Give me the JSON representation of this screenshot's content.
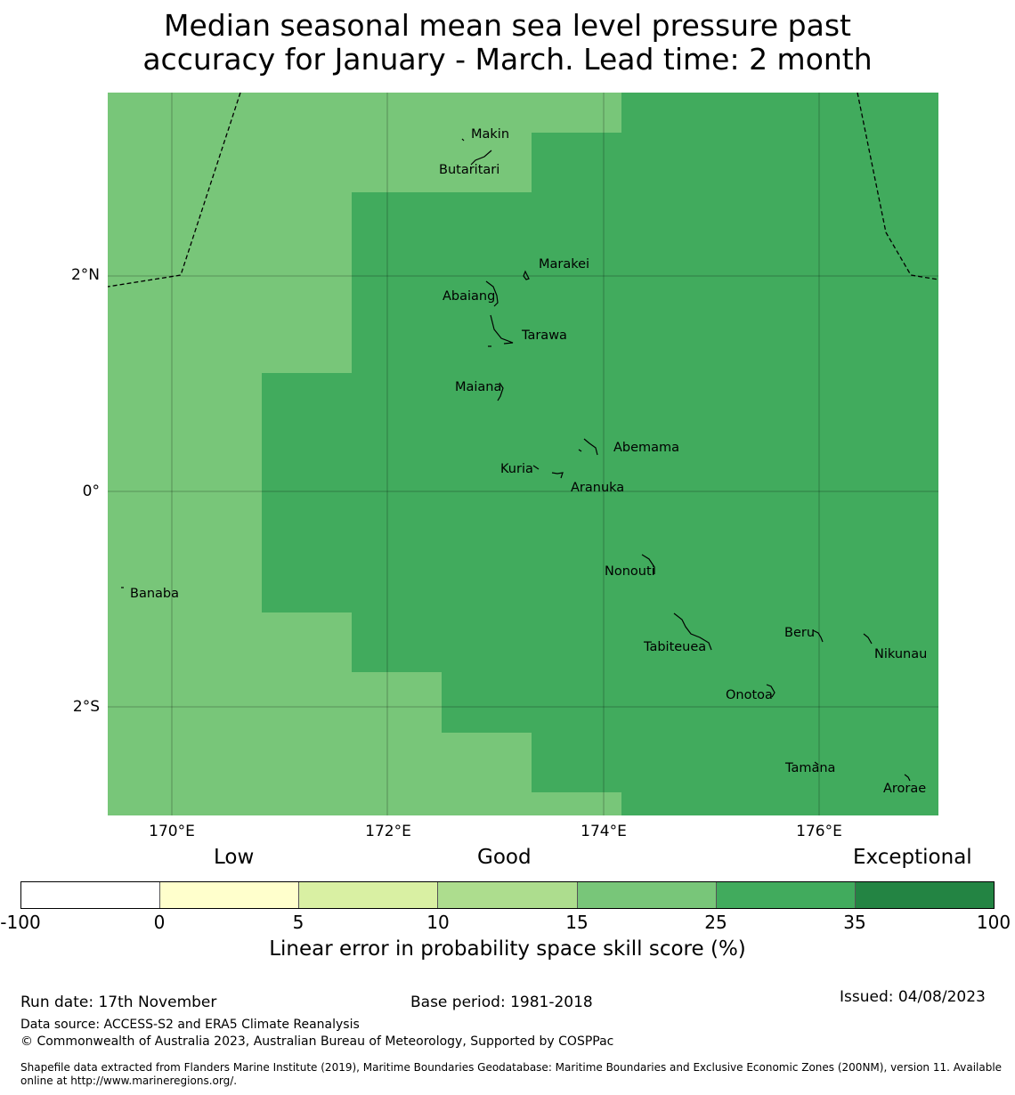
{
  "title": {
    "line1": "Median seasonal mean sea level pressure past",
    "line2": "accuracy for January - March. Lead time: 2 month"
  },
  "map": {
    "x_axis_labels": [
      "170°E",
      "172°E",
      "174°E",
      "176°E"
    ],
    "y_axis_labels": [
      "2°N",
      "0°",
      "2°S"
    ],
    "islands": [
      {
        "name": "Makin"
      },
      {
        "name": "Butaritari"
      },
      {
        "name": "Marakei"
      },
      {
        "name": "Abaiang"
      },
      {
        "name": "Tarawa"
      },
      {
        "name": "Maiana"
      },
      {
        "name": "Abemama"
      },
      {
        "name": "Kuria"
      },
      {
        "name": "Aranuka"
      },
      {
        "name": "Nonouti"
      },
      {
        "name": "Banaba"
      },
      {
        "name": "Beru"
      },
      {
        "name": "Tabiteuea"
      },
      {
        "name": "Nikunau"
      },
      {
        "name": "Onotoa"
      },
      {
        "name": "Tamana"
      },
      {
        "name": "Arorae"
      }
    ],
    "colors": {
      "category_15_25": "#78c679",
      "category_25_35": "#41ab5d"
    }
  },
  "legend": {
    "categories": [
      "Low",
      "Good",
      "Exceptional"
    ],
    "ticks": [
      "-100",
      "0",
      "5",
      "10",
      "15",
      "25",
      "35",
      "100"
    ],
    "colors": [
      "#ffffff",
      "#ffffcc",
      "#d9f0a3",
      "#addd8e",
      "#78c679",
      "#41ab5d",
      "#238443"
    ],
    "label": "Linear error in probability space skill score (%)"
  },
  "footer": {
    "run_date": "Run date: 17th November",
    "base_period": "Base period: 1981-2018",
    "issued": "Issued: 04/08/2023",
    "data_source": "Data source: ACCESS-S2 and ERA5 Climate Reanalysis",
    "copyright": "© Commonwealth of Australia 2023, Australian Bureau of Meteorology, Supported by COSPPac",
    "shapefile": "Shapefile data extracted from Flanders Marine Institute (2019), Maritime Boundaries Geodatabase: Maritime Boundaries and Exclusive Economic Zones (200NM), version 11. Available online at http://www.marineregions.org/."
  }
}
